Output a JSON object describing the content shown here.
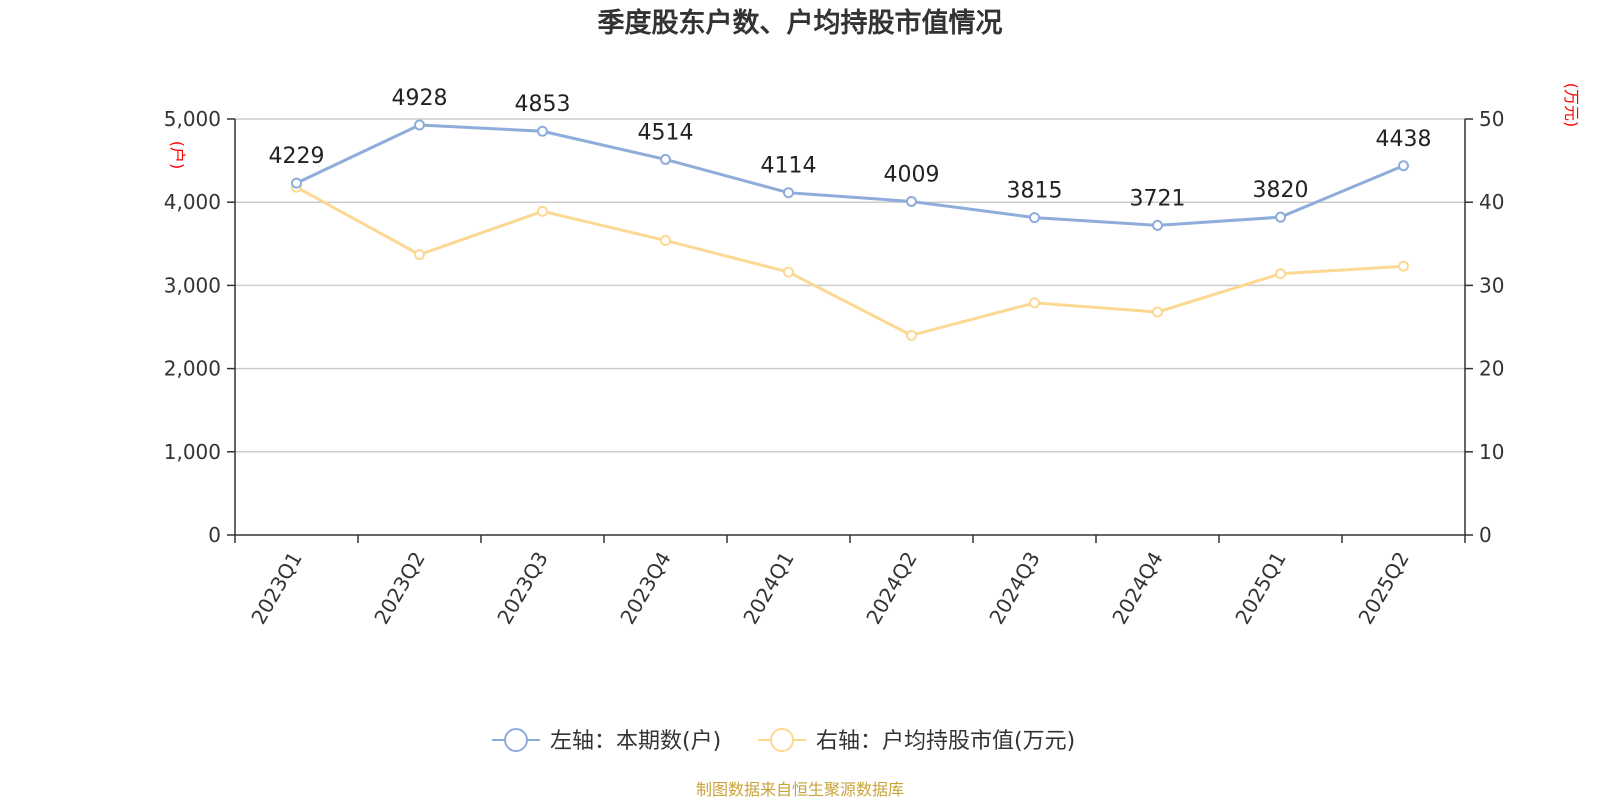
{
  "chart_data": {
    "type": "line",
    "title": "季度股东户数、户均持股市值情况",
    "categories": [
      "2023Q1",
      "2023Q2",
      "2023Q3",
      "2023Q4",
      "2024Q1",
      "2024Q2",
      "2024Q3",
      "2024Q4",
      "2025Q1",
      "2025Q2"
    ],
    "left_axis": {
      "unit_label": "(户)",
      "ylim": [
        0,
        5000
      ],
      "ticks": [
        0,
        1000,
        2000,
        3000,
        4000,
        5000
      ],
      "tick_labels": [
        "0",
        "1,000",
        "2,000",
        "3,000",
        "4,000",
        "5,000"
      ]
    },
    "right_axis": {
      "unit_label": "(万元)",
      "ylim": [
        0,
        50
      ],
      "ticks": [
        0,
        10,
        20,
        30,
        40,
        50
      ],
      "tick_labels": [
        "0",
        "10",
        "20",
        "30",
        "40",
        "50"
      ]
    },
    "series": [
      {
        "name": "左轴：本期数(户)",
        "axis": "left",
        "color": "#8eaddb",
        "values": [
          4229,
          4928,
          4853,
          4514,
          4114,
          4009,
          3815,
          3721,
          3820,
          4438
        ],
        "labels": [
          "4229",
          "4928",
          "4853",
          "4514",
          "4114",
          "4009",
          "3815",
          "3721",
          "3820",
          "4438"
        ]
      },
      {
        "name": "右轴：户均持股市值(万元)",
        "axis": "right",
        "color": "#fdd893",
        "values": [
          41.8,
          33.7,
          38.9,
          35.4,
          31.6,
          24.0,
          27.9,
          26.8,
          31.4,
          32.3
        ]
      }
    ],
    "grid": true,
    "legend_position": "bottom-center",
    "source": "制图数据来自恒生聚源数据库"
  }
}
